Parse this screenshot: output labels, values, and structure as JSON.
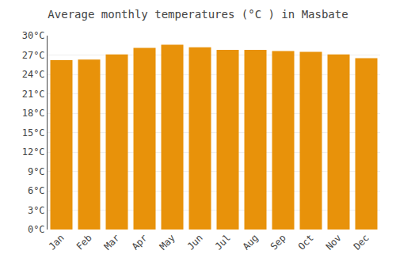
{
  "chart_data": {
    "type": "bar",
    "title": "Average monthly temperatures (°C ) in Masbate",
    "categories": [
      "Jan",
      "Feb",
      "Mar",
      "Apr",
      "May",
      "Jun",
      "Jul",
      "Aug",
      "Sep",
      "Oct",
      "Nov",
      "Dec"
    ],
    "values": [
      26.2,
      26.3,
      27.1,
      28.1,
      28.6,
      28.2,
      27.8,
      27.8,
      27.6,
      27.5,
      27.1,
      26.5
    ],
    "color": "#E8920A",
    "ylim": [
      0,
      30
    ],
    "yticks": [
      {
        "value": 0,
        "label": "0°C"
      },
      {
        "value": 3,
        "label": "3°C"
      },
      {
        "value": 6,
        "label": "6°C"
      },
      {
        "value": 9,
        "label": "9°C"
      },
      {
        "value": 12,
        "label": "12°C"
      },
      {
        "value": 15,
        "label": "15°C"
      },
      {
        "value": 18,
        "label": "18°C"
      },
      {
        "value": 21,
        "label": "21°C"
      },
      {
        "value": 24,
        "label": "24°C"
      },
      {
        "value": 27,
        "label": "27°C"
      },
      {
        "value": 30,
        "label": "30°C"
      }
    ],
    "grid": true
  }
}
